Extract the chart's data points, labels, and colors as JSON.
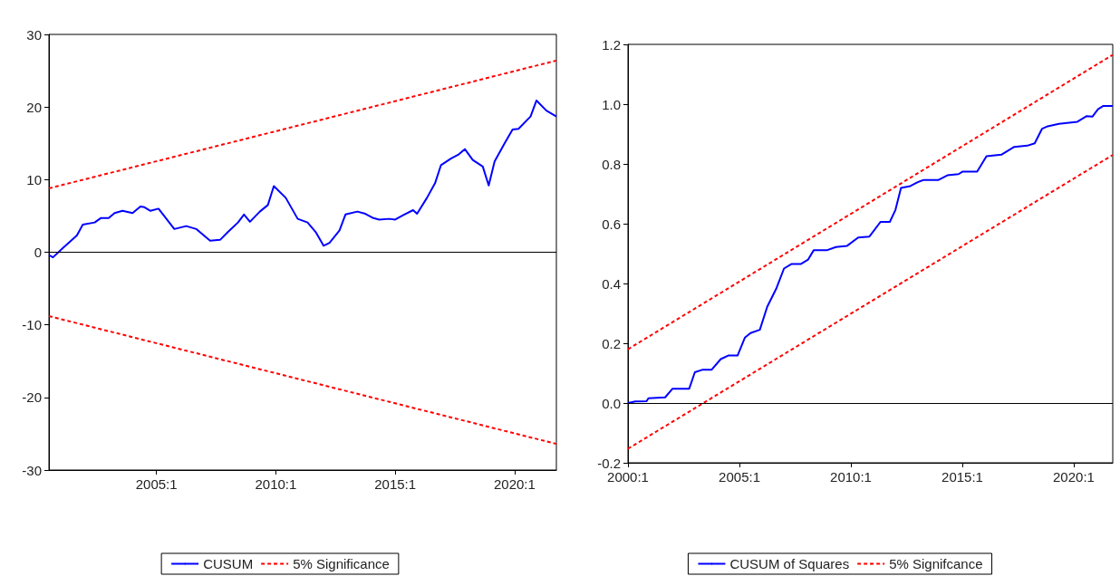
{
  "chart_data": [
    {
      "type": "line",
      "xlim": [
        "2000-07",
        "2021-10"
      ],
      "xticks": [
        {
          "value": "2005-01",
          "label": "2005:1"
        },
        {
          "value": "2010-01",
          "label": "2010:1"
        },
        {
          "value": "2015-01",
          "label": "2015:1"
        },
        {
          "value": "2020-01",
          "label": "2020:1"
        }
      ],
      "ylim": [
        -30,
        30
      ],
      "yticks": [
        -30,
        -20,
        -10,
        0,
        10,
        20,
        30
      ],
      "grid": false,
      "legend": "bottom",
      "marker": "none",
      "ref_lines": [
        {
          "axis": "y",
          "value": 0,
          "color": "#000000"
        }
      ],
      "series": [
        {
          "name": "CUSUM",
          "color": "#0000ff",
          "line_style": "solid",
          "x": [
            "2000-07",
            "2000-09",
            "2001-02",
            "2001-09",
            "2001-12",
            "2002-06",
            "2002-09",
            "2003-01",
            "2003-04",
            "2003-08",
            "2004-01",
            "2004-05",
            "2004-07",
            "2004-10",
            "2005-02",
            "2005-10",
            "2006-04",
            "2006-09",
            "2007-04",
            "2007-09",
            "2008-01",
            "2008-06",
            "2008-09",
            "2008-12",
            "2009-05",
            "2009-09",
            "2009-12",
            "2010-06",
            "2010-12",
            "2011-05",
            "2011-09",
            "2012-01",
            "2012-04",
            "2012-09",
            "2012-12",
            "2013-06",
            "2013-10",
            "2014-02",
            "2014-05",
            "2014-10",
            "2015-01",
            "2015-05",
            "2015-10",
            "2015-12",
            "2016-05",
            "2016-09",
            "2016-12",
            "2017-05",
            "2017-09",
            "2017-12",
            "2018-04",
            "2018-09",
            "2018-12",
            "2019-03",
            "2019-08",
            "2019-12",
            "2020-03",
            "2020-09",
            "2020-12",
            "2021-05",
            "2021-10"
          ],
          "values": [
            -0.4,
            -0.7,
            0.6,
            2.3,
            3.8,
            4.1,
            4.7,
            4.7,
            5.4,
            5.7,
            5.4,
            6.3,
            6.2,
            5.7,
            6.0,
            3.2,
            3.6,
            3.2,
            1.6,
            1.7,
            2.8,
            4.1,
            5.2,
            4.2,
            5.6,
            6.5,
            9.1,
            7.5,
            4.6,
            4.1,
            2.8,
            0.9,
            1.3,
            3.0,
            5.2,
            5.6,
            5.3,
            4.7,
            4.5,
            4.6,
            4.5,
            5.1,
            5.8,
            5.3,
            7.5,
            9.5,
            12.0,
            12.9,
            13.5,
            14.2,
            12.7,
            11.8,
            9.2,
            12.5,
            15.0,
            16.9,
            17.0,
            18.7,
            20.9,
            19.5,
            18.7
          ]
        },
        {
          "name": "5% Significance",
          "color": "#ff0000",
          "line_style": "dashed",
          "x": [
            "2000-07",
            "2021-10"
          ],
          "values": [
            8.8,
            26.4
          ]
        },
        {
          "color": "#ff0000",
          "line_style": "dashed",
          "x": [
            "2000-07",
            "2021-10"
          ],
          "values": [
            -8.8,
            -26.4
          ]
        }
      ]
    },
    {
      "type": "line",
      "xlim": [
        "2000-01",
        "2021-10"
      ],
      "xticks": [
        {
          "value": "2000-01",
          "label": "2000:1"
        },
        {
          "value": "2005-01",
          "label": "2005:1"
        },
        {
          "value": "2010-01",
          "label": "2010:1"
        },
        {
          "value": "2015-01",
          "label": "2015:1"
        },
        {
          "value": "2020-01",
          "label": "2020:1"
        }
      ],
      "ylim": [
        -0.2,
        1.2
      ],
      "yticks": [
        -0.2,
        {
          "value": 0,
          "label": "0.0"
        },
        0.2,
        0.4,
        0.6,
        0.8,
        {
          "value": 1,
          "label": "1.0"
        },
        1.2
      ],
      "grid": false,
      "legend": "bottom",
      "marker": "none",
      "ref_lines": [
        {
          "axis": "y",
          "value": 0,
          "color": "#000000"
        }
      ],
      "series": [
        {
          "name": "CUSUM of Squares",
          "color": "#0000ff",
          "line_style": "solid",
          "x": [
            "2000-01",
            "2000-05",
            "2000-11",
            "2000-12",
            "2001-09",
            "2002-01",
            "2002-10",
            "2003-01",
            "2003-05",
            "2003-10",
            "2004-03",
            "2004-07",
            "2004-12",
            "2005-04",
            "2005-07",
            "2005-12",
            "2006-04",
            "2006-09",
            "2007-01",
            "2007-05",
            "2007-10",
            "2008-02",
            "2008-05",
            "2008-12",
            "2009-05",
            "2009-11",
            "2010-05",
            "2010-11",
            "2011-05",
            "2011-10",
            "2012-01",
            "2012-04",
            "2012-09",
            "2013-01",
            "2013-04",
            "2013-12",
            "2014-05",
            "2014-11",
            "2015-01",
            "2015-09",
            "2016-02",
            "2016-10",
            "2017-05",
            "2017-12",
            "2018-04",
            "2018-08",
            "2018-11",
            "2019-05",
            "2020-03",
            "2020-08",
            "2020-11",
            "2021-02",
            "2021-05",
            "2021-10"
          ],
          "values": [
            0.0,
            0.005,
            0.006,
            0.016,
            0.019,
            0.048,
            0.048,
            0.103,
            0.111,
            0.111,
            0.147,
            0.159,
            0.159,
            0.219,
            0.234,
            0.245,
            0.322,
            0.385,
            0.45,
            0.465,
            0.465,
            0.48,
            0.511,
            0.511,
            0.522,
            0.526,
            0.554,
            0.557,
            0.606,
            0.606,
            0.646,
            0.72,
            0.726,
            0.739,
            0.746,
            0.746,
            0.762,
            0.766,
            0.774,
            0.774,
            0.826,
            0.831,
            0.857,
            0.861,
            0.869,
            0.918,
            0.926,
            0.934,
            0.941,
            0.96,
            0.958,
            0.983,
            0.994,
            0.994
          ]
        },
        {
          "name": "5% Signifcance",
          "color": "#ff0000",
          "line_style": "dashed",
          "x": [
            "2000-01",
            "2021-10"
          ],
          "values": [
            0.18,
            1.165
          ]
        },
        {
          "color": "#ff0000",
          "line_style": "dashed",
          "x": [
            "2000-01",
            "2021-10"
          ],
          "values": [
            -0.153,
            0.83
          ]
        }
      ]
    }
  ]
}
